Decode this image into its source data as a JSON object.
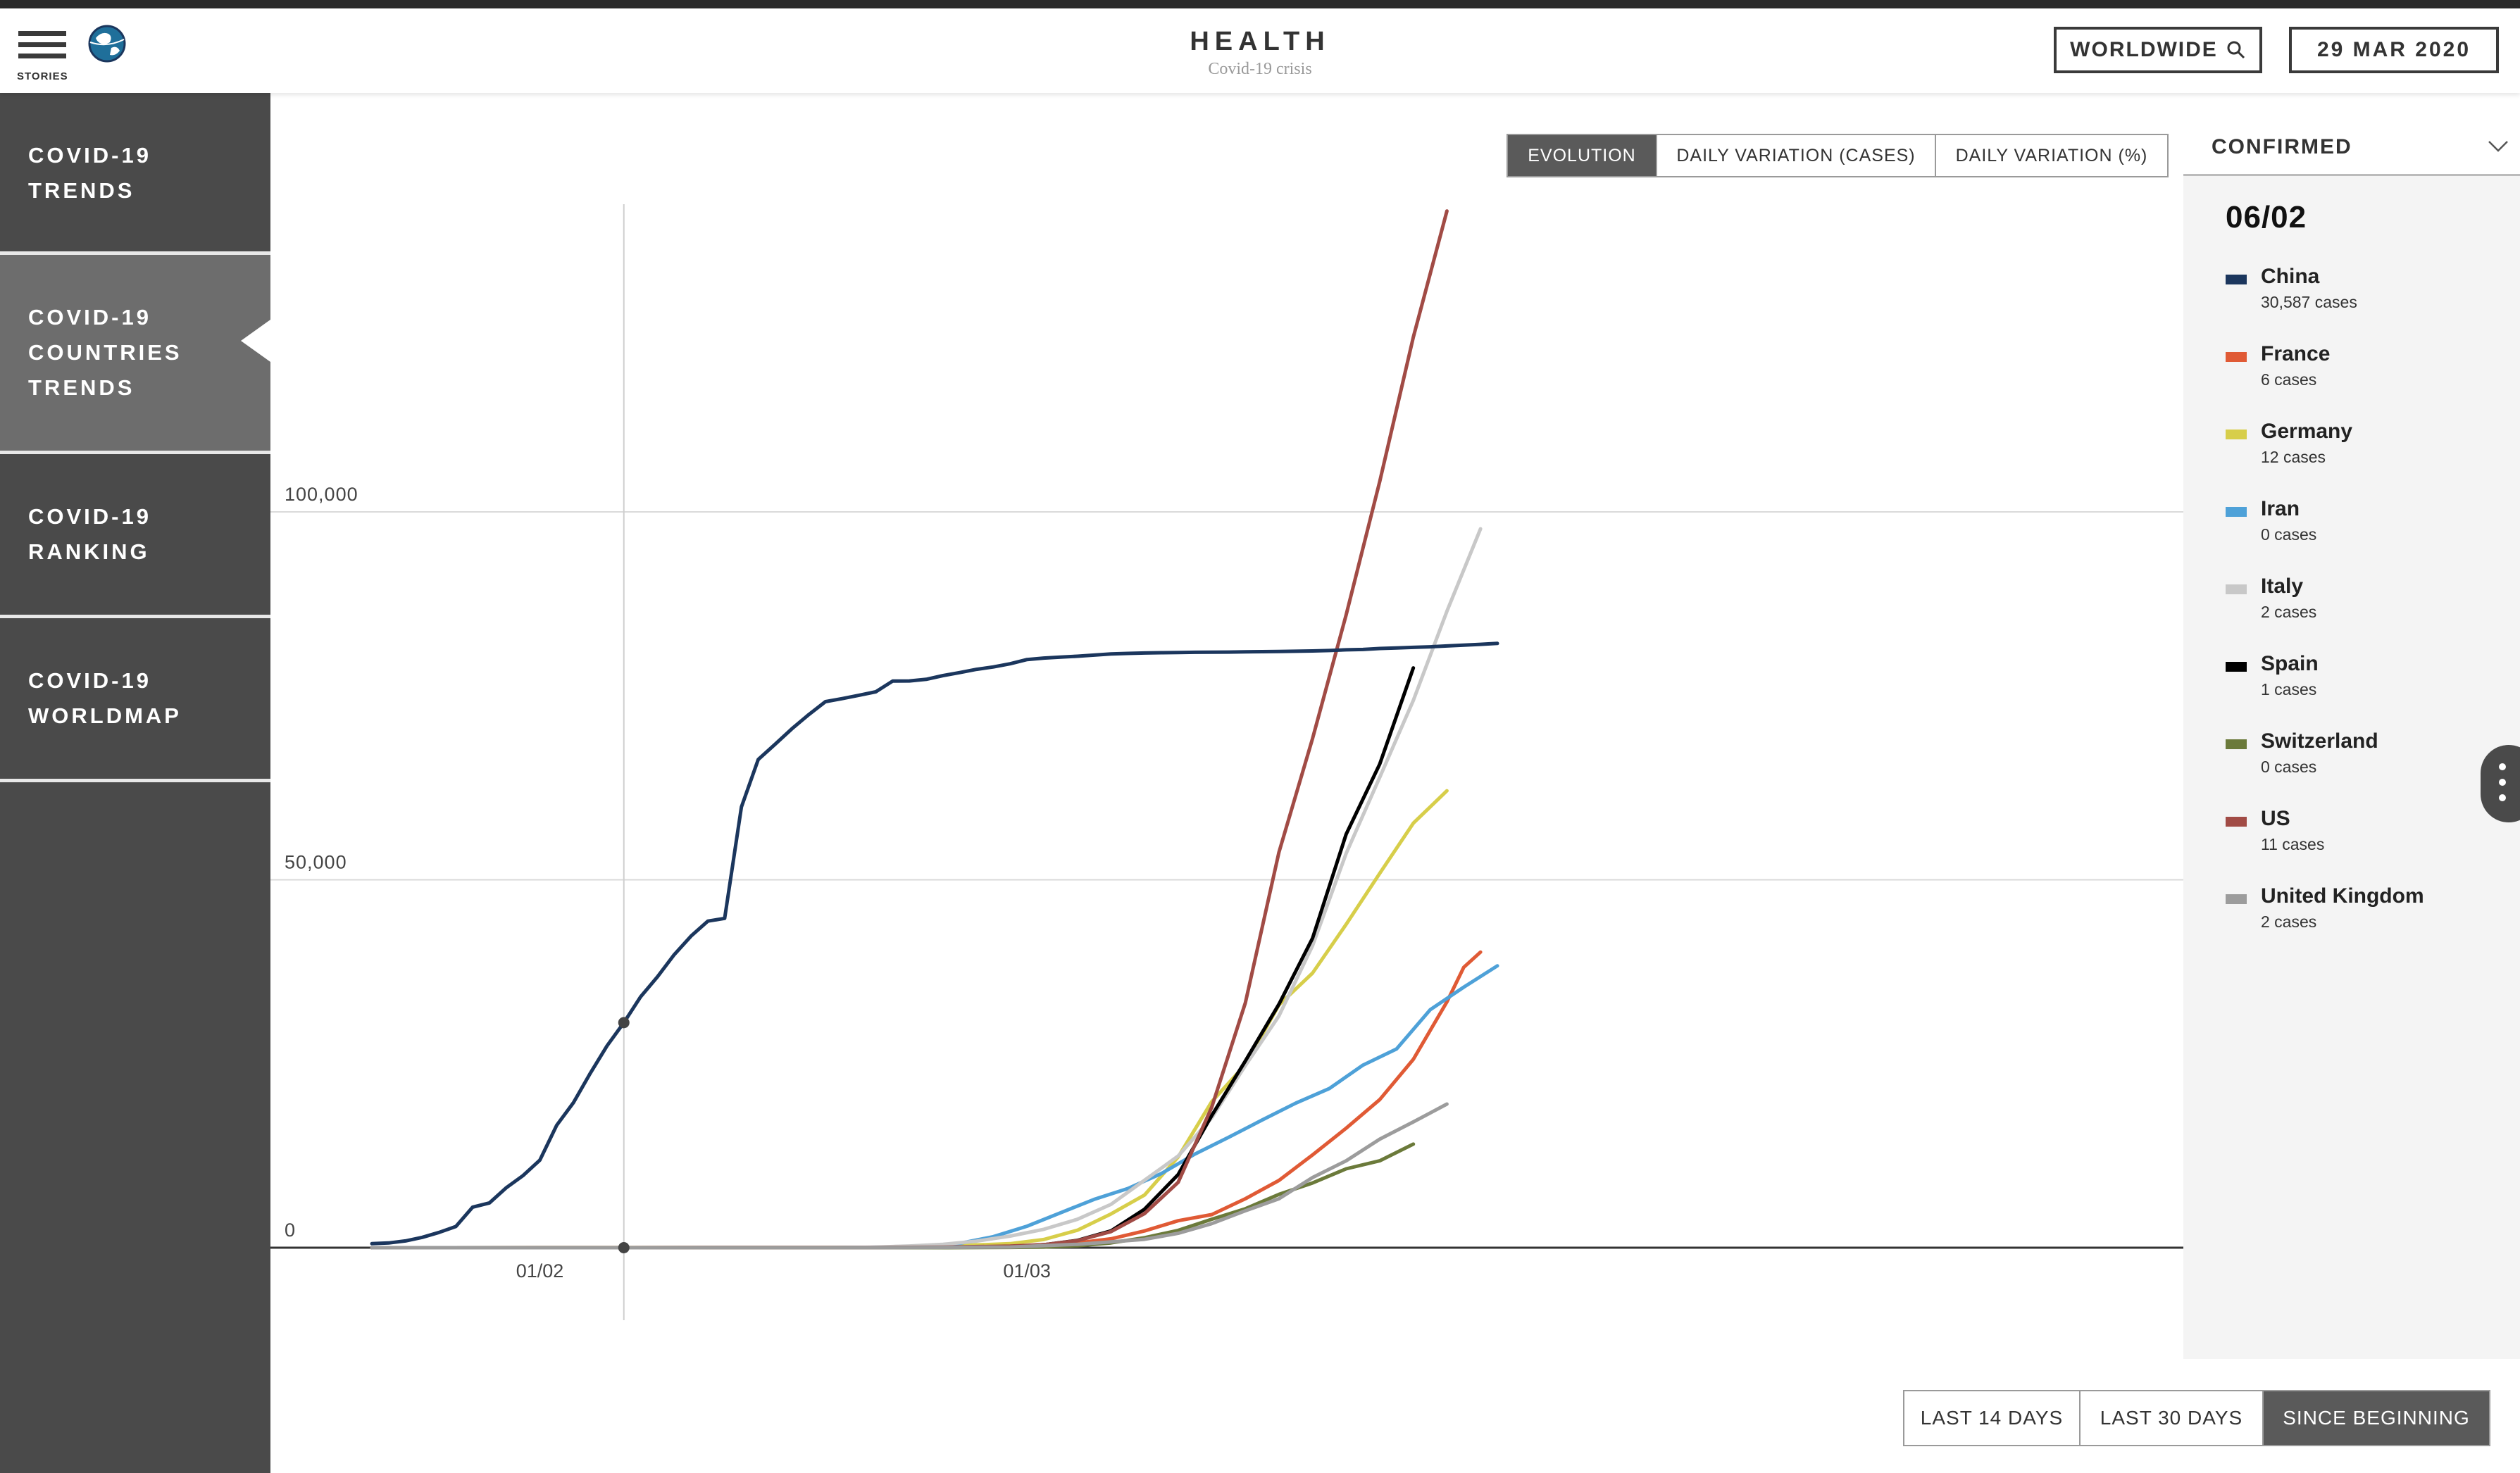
{
  "header": {
    "menu_label": "STORIES",
    "title": "HEALTH",
    "subtitle": "Covid-19 crisis",
    "region_button": "WORLDWIDE",
    "date_label": "29 MAR 2020"
  },
  "sidebar": {
    "items": [
      {
        "label": "COVID-19\nTRENDS",
        "active": false
      },
      {
        "label": "COVID-19\nCOUNTRIES\nTRENDS",
        "active": true
      },
      {
        "label": "COVID-19\nRANKING",
        "active": false
      },
      {
        "label": "COVID-19\nWORLDMAP",
        "active": false
      }
    ]
  },
  "chart_tabs": [
    {
      "label": "EVOLUTION",
      "active": true
    },
    {
      "label": "DAILY VARIATION (CASES)",
      "active": false
    },
    {
      "label": "DAILY VARIATION (%)",
      "active": false
    }
  ],
  "range_buttons": [
    {
      "label": "LAST 14 DAYS",
      "active": false
    },
    {
      "label": "LAST 30 DAYS",
      "active": false
    },
    {
      "label": "SINCE BEGINNING",
      "active": true
    }
  ],
  "panel": {
    "metric_label": "CONFIRMED",
    "hover_date": "06/02",
    "legend": [
      {
        "name": "China",
        "cases": "30,587 cases",
        "color": "#1b365d"
      },
      {
        "name": "France",
        "cases": "6 cases",
        "color": "#e05a35"
      },
      {
        "name": "Germany",
        "cases": "12 cases",
        "color": "#d7ce4a"
      },
      {
        "name": "Iran",
        "cases": "0 cases",
        "color": "#4ea1d8"
      },
      {
        "name": "Italy",
        "cases": "2 cases",
        "color": "#c8c8c8"
      },
      {
        "name": "Spain",
        "cases": "1 cases",
        "color": "#000000"
      },
      {
        "name": "Switzerland",
        "cases": "0 cases",
        "color": "#6b7a3a"
      },
      {
        "name": "US",
        "cases": "11 cases",
        "color": "#a14b45"
      },
      {
        "name": "United Kingdom",
        "cases": "2 cases",
        "color": "#9c9c9c"
      }
    ]
  },
  "chart_data": {
    "type": "line",
    "x_start": "22/01",
    "x_end": "29/03",
    "x_tick_labels": [
      {
        "label": "01/02",
        "day": 10
      },
      {
        "label": "01/03",
        "day": 39
      }
    ],
    "hover_day": 15,
    "y_tick_labels": [
      "0",
      "50,000",
      "100,000"
    ],
    "ylim": [
      0,
      100000
    ],
    "series": [
      {
        "name": "China",
        "color": "#1b365d",
        "points": [
          [
            0,
            548
          ],
          [
            1,
            643
          ],
          [
            2,
            920
          ],
          [
            3,
            1406
          ],
          [
            4,
            2075
          ],
          [
            5,
            2877
          ],
          [
            6,
            5509
          ],
          [
            7,
            6087
          ],
          [
            8,
            8141
          ],
          [
            9,
            9802
          ],
          [
            10,
            11891
          ],
          [
            11,
            16630
          ],
          [
            12,
            19716
          ],
          [
            13,
            23707
          ],
          [
            14,
            27440
          ],
          [
            15,
            30587
          ],
          [
            16,
            34110
          ],
          [
            17,
            36814
          ],
          [
            18,
            39829
          ],
          [
            19,
            42354
          ],
          [
            20,
            44386
          ],
          [
            21,
            44759
          ],
          [
            22,
            59895
          ],
          [
            23,
            66358
          ],
          [
            24,
            68413
          ],
          [
            25,
            70513
          ],
          [
            26,
            72434
          ],
          [
            27,
            74211
          ],
          [
            28,
            74619
          ],
          [
            29,
            75077
          ],
          [
            30,
            75550
          ],
          [
            31,
            77001
          ],
          [
            32,
            77022
          ],
          [
            33,
            77241
          ],
          [
            34,
            77754
          ],
          [
            35,
            78166
          ],
          [
            36,
            78600
          ],
          [
            37,
            78928
          ],
          [
            38,
            79356
          ],
          [
            39,
            79932
          ],
          [
            40,
            80136
          ],
          [
            41,
            80261
          ],
          [
            42,
            80386
          ],
          [
            43,
            80537
          ],
          [
            44,
            80690
          ],
          [
            45,
            80770
          ],
          [
            46,
            80823
          ],
          [
            47,
            80860
          ],
          [
            48,
            80887
          ],
          [
            49,
            80921
          ],
          [
            50,
            80932
          ],
          [
            51,
            80945
          ],
          [
            52,
            80977
          ],
          [
            53,
            81003
          ],
          [
            54,
            81033
          ],
          [
            55,
            81058
          ],
          [
            56,
            81102
          ],
          [
            57,
            81156
          ],
          [
            58,
            81250
          ],
          [
            59,
            81305
          ],
          [
            60,
            81435
          ],
          [
            61,
            81498
          ],
          [
            62,
            81591
          ],
          [
            63,
            81661
          ],
          [
            64,
            81782
          ],
          [
            65,
            81897
          ],
          [
            66,
            81999
          ],
          [
            67,
            82122
          ]
        ]
      },
      {
        "name": "France",
        "color": "#e05a35",
        "points": [
          [
            0,
            0
          ],
          [
            30,
            12
          ],
          [
            34,
            100
          ],
          [
            38,
            130
          ],
          [
            40,
            191
          ],
          [
            42,
            653
          ],
          [
            44,
            1209
          ],
          [
            46,
            2281
          ],
          [
            48,
            3667
          ],
          [
            50,
            4500
          ],
          [
            52,
            6650
          ],
          [
            54,
            9134
          ],
          [
            56,
            12612
          ],
          [
            58,
            16243
          ],
          [
            60,
            20123
          ],
          [
            62,
            25600
          ],
          [
            64,
            33402
          ],
          [
            65,
            38105
          ],
          [
            66,
            40174
          ]
        ]
      },
      {
        "name": "Germany",
        "color": "#d7ce4a",
        "points": [
          [
            0,
            0
          ],
          [
            30,
            16
          ],
          [
            34,
            200
          ],
          [
            38,
            545
          ],
          [
            40,
            1112
          ],
          [
            42,
            2369
          ],
          [
            44,
            4585
          ],
          [
            46,
            7156
          ],
          [
            48,
            12327
          ],
          [
            50,
            19848
          ],
          [
            52,
            24873
          ],
          [
            54,
            32986
          ],
          [
            56,
            37323
          ],
          [
            58,
            43938
          ],
          [
            60,
            50871
          ],
          [
            62,
            57695
          ],
          [
            64,
            62095
          ]
        ]
      },
      {
        "name": "Iran",
        "color": "#4ea1d8",
        "points": [
          [
            0,
            0
          ],
          [
            27,
            0
          ],
          [
            29,
            28
          ],
          [
            31,
            95
          ],
          [
            33,
            245
          ],
          [
            35,
            593
          ],
          [
            37,
            1501
          ],
          [
            39,
            2922
          ],
          [
            41,
            4747
          ],
          [
            43,
            6566
          ],
          [
            45,
            8042
          ],
          [
            47,
            10075
          ],
          [
            49,
            12729
          ],
          [
            51,
            14991
          ],
          [
            53,
            17361
          ],
          [
            55,
            19644
          ],
          [
            57,
            21638
          ],
          [
            59,
            24811
          ],
          [
            61,
            27017
          ],
          [
            63,
            32332
          ],
          [
            65,
            35408
          ],
          [
            67,
            38309
          ]
        ]
      },
      {
        "name": "Italy",
        "color": "#c8c8c8",
        "points": [
          [
            0,
            0
          ],
          [
            28,
            3
          ],
          [
            30,
            76
          ],
          [
            32,
            229
          ],
          [
            34,
            453
          ],
          [
            36,
            888
          ],
          [
            38,
            1577
          ],
          [
            40,
            2502
          ],
          [
            42,
            3858
          ],
          [
            44,
            5883
          ],
          [
            46,
            9172
          ],
          [
            48,
            12462
          ],
          [
            50,
            17660
          ],
          [
            52,
            24747
          ],
          [
            54,
            31506
          ],
          [
            56,
            41035
          ],
          [
            58,
            53578
          ],
          [
            60,
            63927
          ],
          [
            62,
            74386
          ],
          [
            64,
            86498
          ],
          [
            66,
            97689
          ]
        ]
      },
      {
        "name": "Spain",
        "color": "#000000",
        "points": [
          [
            0,
            0
          ],
          [
            30,
            2
          ],
          [
            34,
            32
          ],
          [
            38,
            151
          ],
          [
            40,
            400
          ],
          [
            42,
            999
          ],
          [
            44,
            2277
          ],
          [
            46,
            5232
          ],
          [
            48,
            9942
          ],
          [
            50,
            17963
          ],
          [
            52,
            25374
          ],
          [
            54,
            33089
          ],
          [
            56,
            42058
          ],
          [
            58,
            56188
          ],
          [
            60,
            65719
          ],
          [
            62,
            78797
          ]
        ]
      },
      {
        "name": "Switzerland",
        "color": "#6b7a3a",
        "points": [
          [
            0,
            0
          ],
          [
            34,
            1
          ],
          [
            38,
            42
          ],
          [
            40,
            90
          ],
          [
            42,
            264
          ],
          [
            44,
            652
          ],
          [
            46,
            1359
          ],
          [
            48,
            2353
          ],
          [
            50,
            3863
          ],
          [
            52,
            5294
          ],
          [
            54,
            7245
          ],
          [
            56,
            8795
          ],
          [
            58,
            10714
          ],
          [
            60,
            11811
          ],
          [
            62,
            14076
          ]
        ]
      },
      {
        "name": "US",
        "color": "#a14b45",
        "points": [
          [
            0,
            1
          ],
          [
            20,
            15
          ],
          [
            30,
            24
          ],
          [
            34,
            70
          ],
          [
            38,
            217
          ],
          [
            40,
            402
          ],
          [
            42,
            959
          ],
          [
            44,
            2179
          ],
          [
            46,
            4632
          ],
          [
            48,
            8883
          ],
          [
            50,
            19100
          ],
          [
            52,
            33276
          ],
          [
            54,
            53740
          ],
          [
            56,
            69194
          ],
          [
            58,
            85996
          ],
          [
            60,
            104126
          ],
          [
            62,
            123750
          ],
          [
            64,
            140886
          ]
        ]
      },
      {
        "name": "United Kingdom",
        "color": "#9c9c9c",
        "points": [
          [
            0,
            0
          ],
          [
            30,
            13
          ],
          [
            34,
            36
          ],
          [
            38,
            85
          ],
          [
            40,
            273
          ],
          [
            42,
            456
          ],
          [
            44,
            798
          ],
          [
            46,
            1140
          ],
          [
            48,
            1950
          ],
          [
            50,
            3269
          ],
          [
            52,
            5018
          ],
          [
            54,
            6650
          ],
          [
            56,
            9529
          ],
          [
            58,
            11812
          ],
          [
            60,
            14745
          ],
          [
            62,
            17089
          ],
          [
            64,
            19522
          ]
        ]
      }
    ]
  }
}
